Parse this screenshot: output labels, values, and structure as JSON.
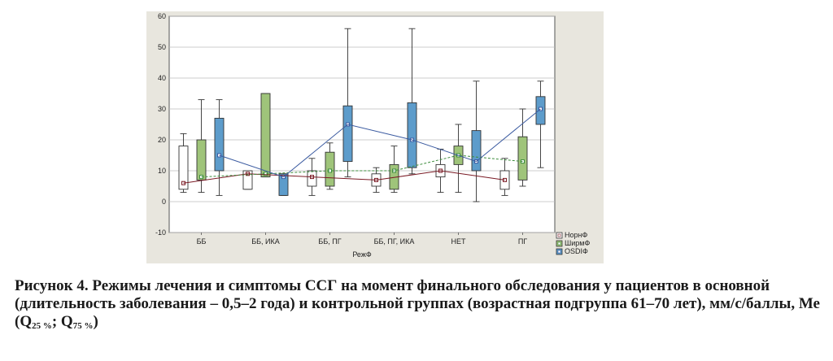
{
  "chart_data": {
    "type": "box",
    "xlabel": "РежФ",
    "ylabel": "",
    "ylim": [
      -10,
      60
    ],
    "yticks": [
      -10,
      0,
      10,
      20,
      30,
      40,
      50,
      60
    ],
    "grid": true,
    "legend_position": "bottom-right",
    "categories": [
      "ББ",
      "ББ, ИКА",
      "ББ, ПГ",
      "ББ, ПГ, ИКА",
      "НЕТ",
      "ПГ"
    ],
    "series": [
      {
        "name": "НорнФ",
        "color": "#ffffff",
        "line_color": "#7a1a24",
        "line_style": "solid",
        "boxes": [
          {
            "min": 3,
            "q1": 4,
            "median": 6,
            "q3": 18,
            "max": 22
          },
          {
            "min": 4,
            "q1": 4,
            "median": 9,
            "q3": 10,
            "max": 10
          },
          {
            "min": 2,
            "q1": 5,
            "median": 8,
            "q3": 10,
            "max": 14
          },
          {
            "min": 3,
            "q1": 5,
            "median": 7,
            "q3": 9,
            "max": 11
          },
          {
            "min": 3,
            "q1": 8,
            "median": 10,
            "q3": 12,
            "max": 17
          },
          {
            "min": 2,
            "q1": 4,
            "median": 7,
            "q3": 10,
            "max": 14
          }
        ]
      },
      {
        "name": "ШирмФ",
        "color": "#9fc47a",
        "line_color": "#3c8c3c",
        "line_style": "dashed",
        "boxes": [
          {
            "min": 3,
            "q1": 7,
            "median": 8,
            "q3": 20,
            "max": 33
          },
          {
            "min": 8,
            "q1": 8,
            "median": 9,
            "q3": 35,
            "max": 35
          },
          {
            "min": 4,
            "q1": 5,
            "median": 10,
            "q3": 16,
            "max": 19
          },
          {
            "min": 3,
            "q1": 4,
            "median": 10,
            "q3": 12,
            "max": 18
          },
          {
            "min": 3,
            "q1": 12,
            "median": 15,
            "q3": 18,
            "max": 25
          },
          {
            "min": 5,
            "q1": 7,
            "median": 13,
            "q3": 21,
            "max": 30
          }
        ]
      },
      {
        "name": "OSDIФ",
        "color": "#5d9ccb",
        "line_color": "#3a5aa0",
        "line_style": "solid",
        "boxes": [
          {
            "min": 2,
            "q1": 10,
            "median": 15,
            "q3": 27,
            "max": 33
          },
          {
            "min": 2,
            "q1": 2,
            "median": 8,
            "q3": 9,
            "max": 9
          },
          {
            "min": 8,
            "q1": 13,
            "median": 25,
            "q3": 31,
            "max": 56
          },
          {
            "min": 9,
            "q1": 11,
            "median": 20,
            "q3": 32,
            "max": 56
          },
          {
            "min": 0,
            "q1": 10,
            "median": 13,
            "q3": 23,
            "max": 39
          },
          {
            "min": 11,
            "q1": 25,
            "median": 30,
            "q3": 34,
            "max": 39
          }
        ]
      }
    ]
  },
  "caption": {
    "text_main": "Рисунок 4. Режимы лечения и симптомы ССГ на момент финального обследования у пациентов в основной (длительность заболевания – 0,5–2 года) и контрольной группах (возрастная подгруппа 61–70 лет), мм/с/баллы, Ме (Q",
    "sub1": "25 %",
    "sep": "; Q",
    "sub2": "75 %",
    "close": ")"
  }
}
